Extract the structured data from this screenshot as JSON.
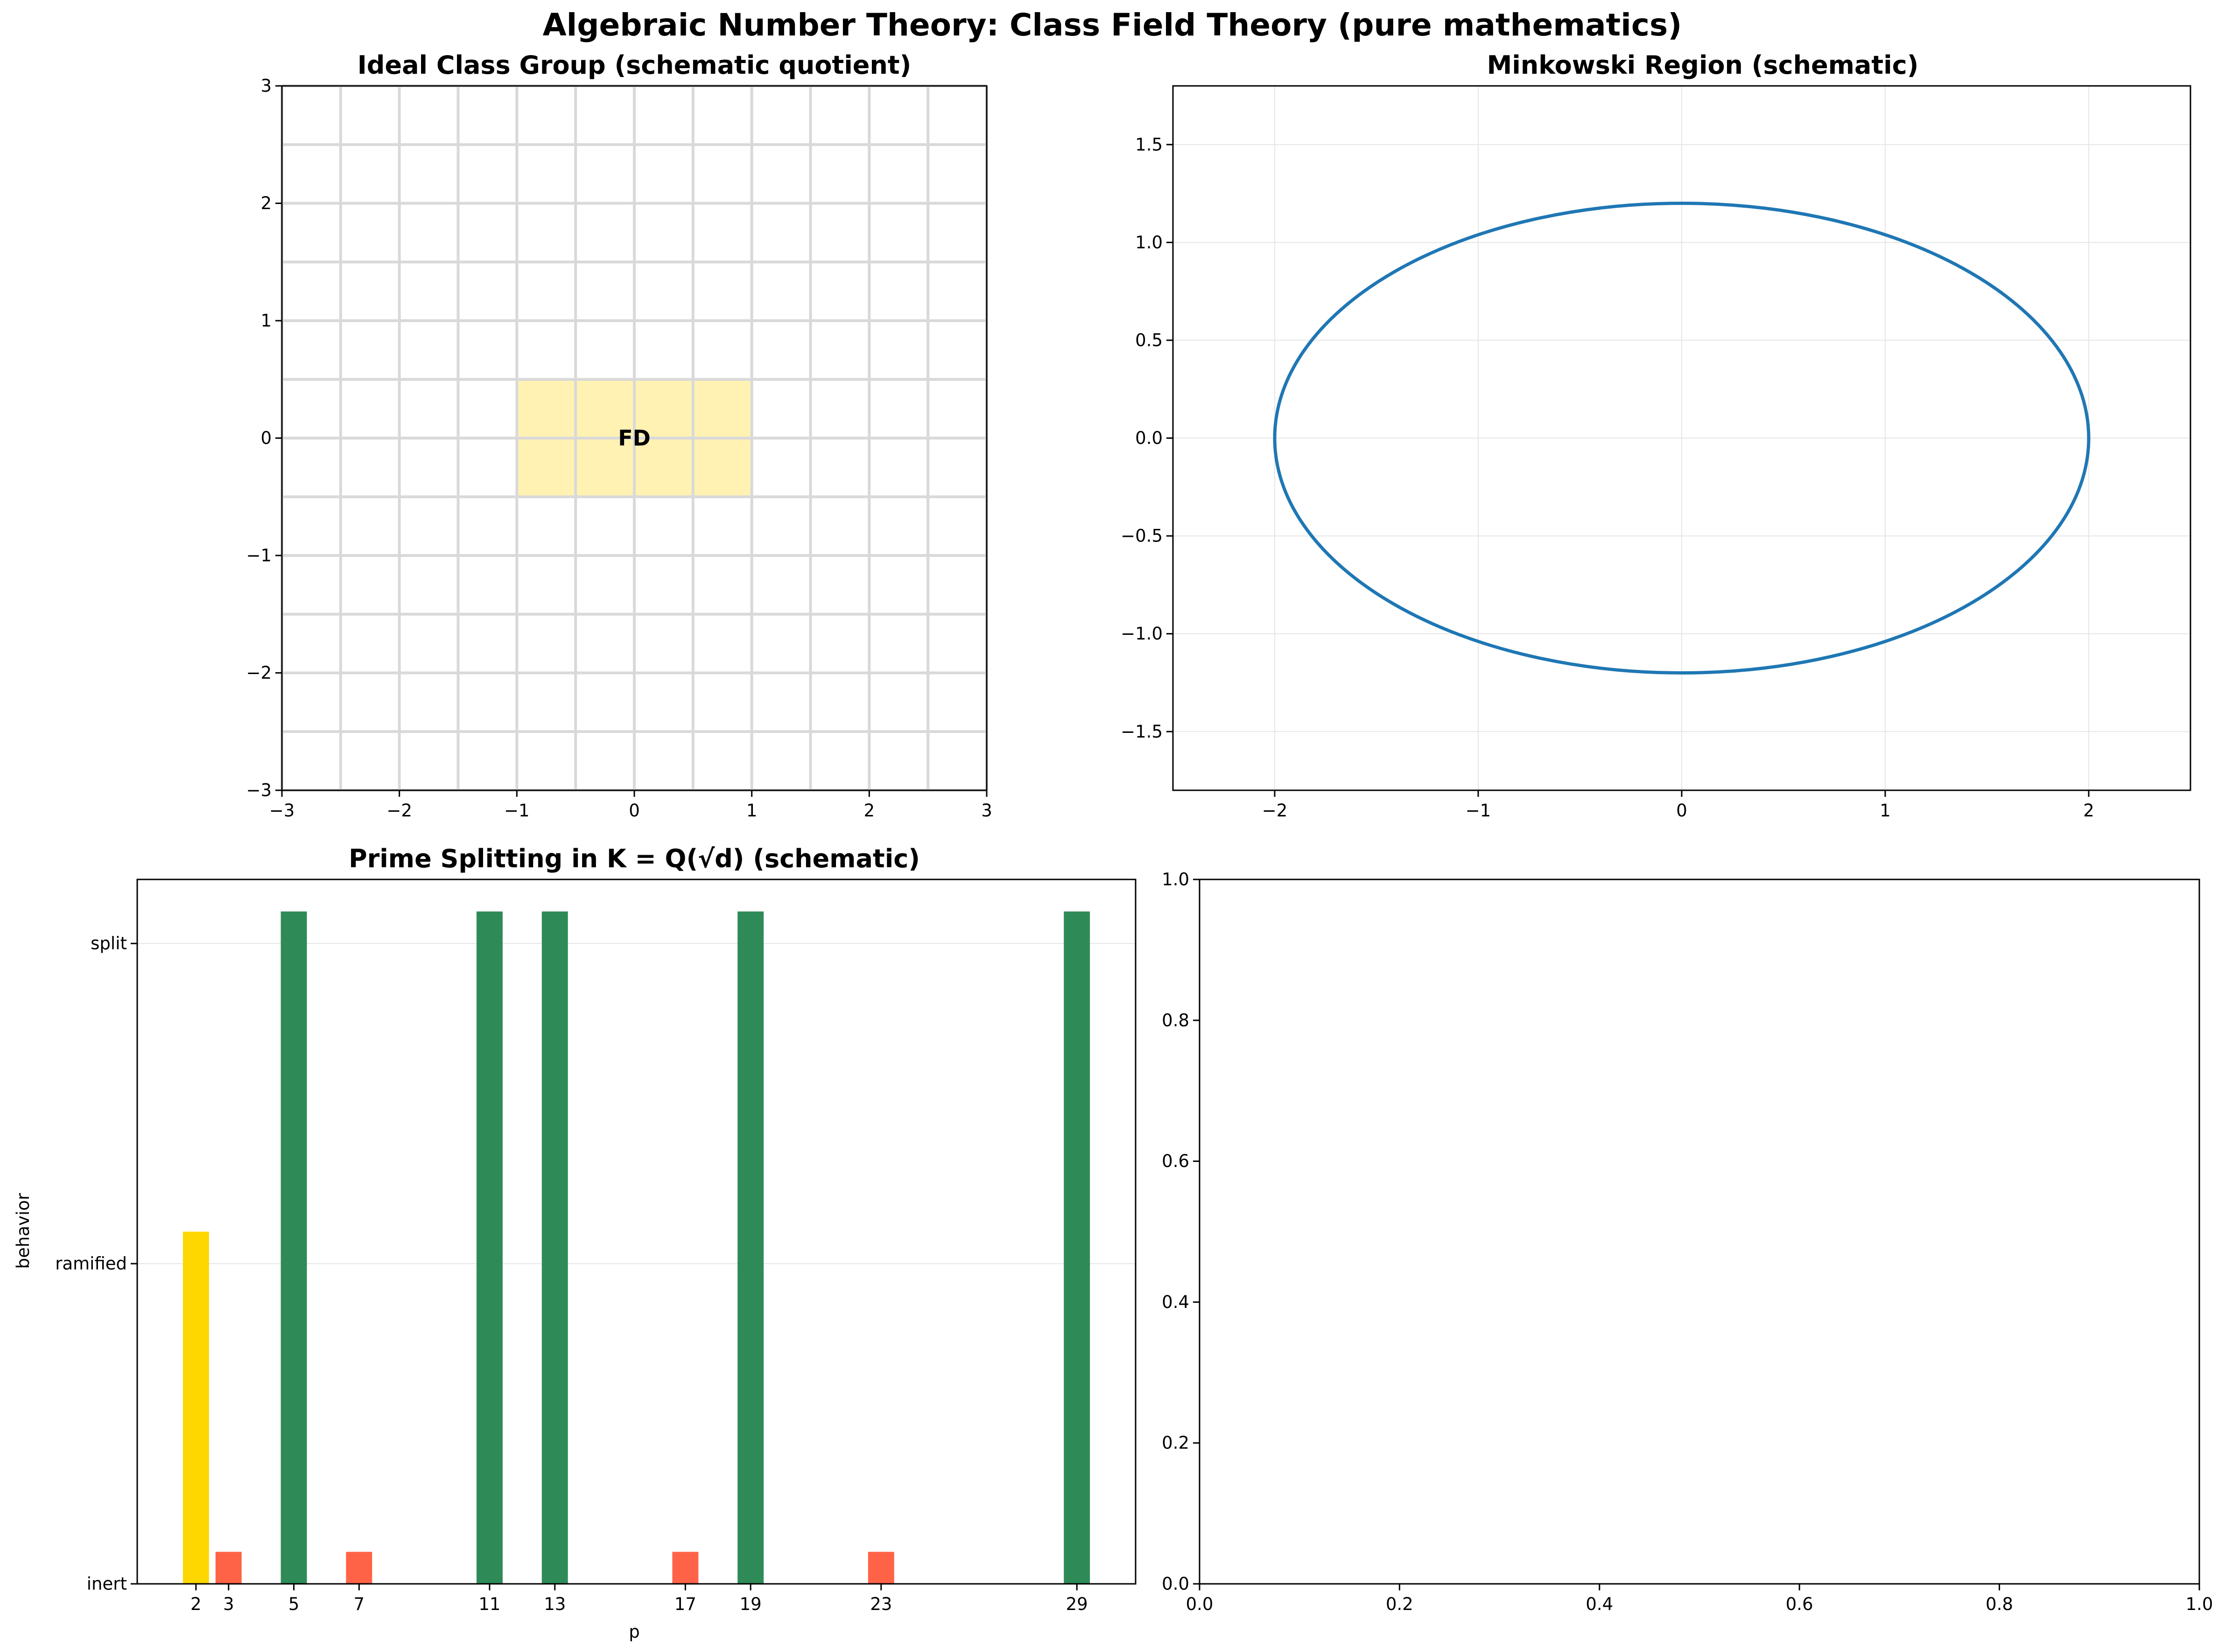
{
  "figure": {
    "title": "Algebraic Number Theory: Class Field Theory (pure mathematics)"
  },
  "chart_data": [
    {
      "type": "heatmap",
      "title": "Ideal Class Group (schematic quotient)",
      "xlabel": "",
      "ylabel": "",
      "xlim": [
        -3,
        3
      ],
      "ylim": [
        -3,
        3
      ],
      "xticks": [
        -3,
        -2,
        -1,
        0,
        1,
        2,
        3
      ],
      "yticks": [
        -3,
        -2,
        -1,
        0,
        1,
        2,
        3
      ],
      "xtick_labels": [
        "−3",
        "−2",
        "−1",
        "0",
        "1",
        "2",
        "3"
      ],
      "ytick_labels": [
        "−3",
        "−2",
        "−1",
        "0",
        "1",
        "2",
        "3"
      ],
      "lattice": {
        "vertical_lines_x": [
          -3,
          -2.5,
          -2,
          -1.5,
          -1,
          -0.5,
          0,
          0.5,
          1,
          1.5,
          2,
          2.5,
          3
        ],
        "horizontal_lines_y": [
          -3,
          -2.5,
          -2,
          -1.5,
          -1,
          -0.5,
          0,
          0.5,
          1,
          1.5,
          2,
          2.5,
          3
        ],
        "color": "#d9d9d9"
      },
      "fundamental_domain": {
        "x_range": [
          -1,
          1
        ],
        "y_range": [
          -0.5,
          0.5
        ],
        "color": "#fff2b3",
        "label": "FD",
        "label_at": [
          0,
          0
        ]
      },
      "grid": false
    },
    {
      "type": "line",
      "title": "Minkowski Region (schematic)",
      "xlabel": "",
      "ylabel": "",
      "xlim": [
        -2.5,
        2.5
      ],
      "ylim": [
        -1.8,
        1.8
      ],
      "xticks": [
        -2,
        -1,
        0,
        1,
        2
      ],
      "yticks": [
        -1.5,
        -1.0,
        -0.5,
        0.0,
        0.5,
        1.0,
        1.5
      ],
      "xtick_labels": [
        "−2",
        "−1",
        "0",
        "1",
        "2"
      ],
      "ytick_labels": [
        "−1.5",
        "−1.0",
        "−0.5",
        "0.0",
        "0.5",
        "1.0",
        "1.5"
      ],
      "series": [
        {
          "shape": "ellipse",
          "center": [
            0,
            0
          ],
          "semi_axis_x": 2,
          "semi_axis_y": 1.2,
          "color": "#1f77b4"
        }
      ],
      "grid": true
    },
    {
      "type": "bar",
      "title": "Prime Splitting in K = Q(√d) (schematic)",
      "xlabel": "p",
      "ylabel": "behavior",
      "categories": [
        2,
        3,
        5,
        7,
        11,
        13,
        17,
        19,
        23,
        29
      ],
      "xtick_labels": [
        "2",
        "3",
        "5",
        "7",
        "11",
        "13",
        "17",
        "19",
        "23",
        "29"
      ],
      "values": [
        1.1,
        0.1,
        2.1,
        0.1,
        2.1,
        2.1,
        0.1,
        2.1,
        0.1,
        2.1
      ],
      "behavior": [
        "ramified",
        "inert",
        "split",
        "inert",
        "split",
        "split",
        "inert",
        "split",
        "inert",
        "split"
      ],
      "colors": {
        "split": "#2e8b57",
        "ramified": "#ffd700",
        "inert": "#ff6347"
      },
      "bar_width": 0.8,
      "xlim": [
        0.2,
        30.8
      ],
      "ylim": [
        0,
        2.2
      ],
      "yticks": [
        0,
        1,
        2
      ],
      "ytick_labels": [
        "inert",
        "ramified",
        "split"
      ],
      "grid": "y"
    },
    {
      "type": "line",
      "title": "",
      "xlim": [
        0,
        1
      ],
      "ylim": [
        0,
        1
      ],
      "xticks": [
        0,
        0.2,
        0.4,
        0.6,
        0.8,
        1.0
      ],
      "yticks": [
        0,
        0.2,
        0.4,
        0.6,
        0.8,
        1.0
      ],
      "xtick_labels": [
        "0.0",
        "0.2",
        "0.4",
        "0.6",
        "0.8",
        "1.0"
      ],
      "ytick_labels": [
        "0.0",
        "0.2",
        "0.4",
        "0.6",
        "0.8",
        "1.0"
      ],
      "series": [],
      "grid": false
    }
  ]
}
